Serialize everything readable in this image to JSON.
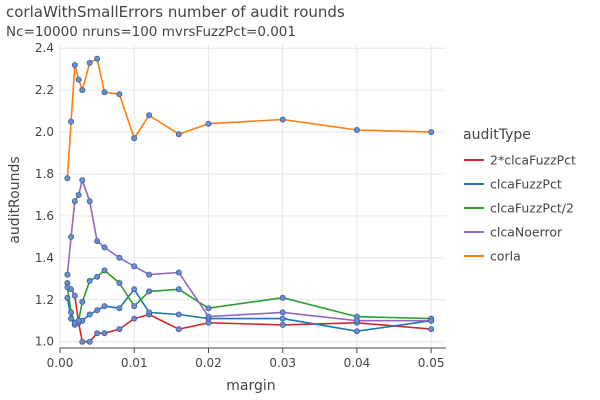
{
  "chart_data": {
    "type": "line",
    "title": "corlaWithSmallErrors number of audit rounds",
    "subtitle": "Nc=10000 nruns=100 mvrsFuzzPct=0.001",
    "xlabel": "margin",
    "ylabel": "auditRounds",
    "xlim": [
      0,
      0.052
    ],
    "ylim": [
      0.97,
      2.42
    ],
    "xticks": [
      0,
      0.01,
      0.02,
      0.03,
      0.04,
      0.05
    ],
    "xtick_labels": [
      "0.00",
      "0.01",
      "0.02",
      "0.03",
      "0.04",
      "0.05"
    ],
    "yticks": [
      1.0,
      1.2,
      1.4,
      1.6,
      1.8,
      2.0,
      2.2,
      2.4
    ],
    "ytick_labels": [
      "1.0",
      "1.2",
      "1.4",
      "1.6",
      "1.8",
      "2.0",
      "2.2",
      "2.4"
    ],
    "grid": true,
    "legend_title": "auditType",
    "legend_position": "right",
    "marker_color": "#6a8fd0",
    "x": [
      0.001,
      0.0015,
      0.002,
      0.0025,
      0.003,
      0.004,
      0.005,
      0.006,
      0.008,
      0.01,
      0.012,
      0.016,
      0.02,
      0.03,
      0.04,
      0.05
    ],
    "series": [
      {
        "name": "2*clcaFuzzPct",
        "color": "#d62728",
        "values": [
          1.28,
          1.25,
          1.22,
          1.09,
          1.0,
          1.0,
          1.04,
          1.04,
          1.06,
          1.11,
          1.13,
          1.06,
          1.09,
          1.08,
          1.09,
          1.06
        ]
      },
      {
        "name": "clcaFuzzPct",
        "color": "#1f77b4",
        "values": [
          1.21,
          1.11,
          1.08,
          1.1,
          1.1,
          1.13,
          1.15,
          1.17,
          1.16,
          1.25,
          1.14,
          1.13,
          1.11,
          1.11,
          1.05,
          1.1
        ]
      },
      {
        "name": "clcaFuzzPct/2",
        "color": "#2ca02c",
        "values": [
          1.26,
          1.14,
          1.09,
          1.1,
          1.19,
          1.29,
          1.31,
          1.34,
          1.28,
          1.17,
          1.24,
          1.25,
          1.16,
          1.21,
          1.12,
          1.11
        ]
      },
      {
        "name": "clcaNoerror",
        "color": "#9467bd",
        "values": [
          1.32,
          1.5,
          1.67,
          1.7,
          1.77,
          1.67,
          1.48,
          1.45,
          1.4,
          1.36,
          1.32,
          1.33,
          1.12,
          1.14,
          1.1,
          1.1
        ]
      },
      {
        "name": "corla",
        "color": "#ff7f0e",
        "values": [
          1.78,
          2.05,
          2.32,
          2.25,
          2.2,
          2.33,
          2.35,
          2.19,
          2.18,
          1.97,
          2.08,
          1.99,
          2.04,
          2.06,
          2.01,
          2.0
        ]
      }
    ]
  }
}
